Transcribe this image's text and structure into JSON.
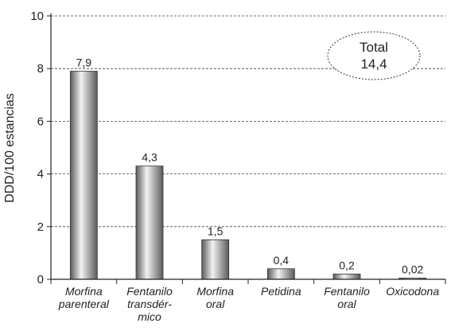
{
  "chart_data": {
    "type": "bar",
    "categories": [
      [
        "Morfina",
        "parenteral"
      ],
      [
        "Fentanilo",
        "transdér-",
        "mico"
      ],
      [
        "Morfina",
        "oral"
      ],
      [
        "Petidina"
      ],
      [
        "Fentanilo",
        "oral"
      ],
      [
        "Oxicodona"
      ]
    ],
    "values": [
      7.9,
      4.3,
      1.5,
      0.4,
      0.2,
      0.02
    ],
    "value_labels": [
      "7,9",
      "4,3",
      "1,5",
      "0,4",
      "0,2",
      "0,02"
    ],
    "ylabel": "DDD/100 estancias",
    "xlabel": "",
    "ylim": [
      0,
      10
    ],
    "yticks": [
      0,
      2,
      4,
      6,
      8,
      10
    ],
    "ytick_labels": [
      "0",
      "2",
      "4",
      "6",
      "8",
      "10"
    ],
    "grid": "horizontal dashed",
    "annotation": {
      "line1": "Total",
      "line2": "14,4",
      "position": "top-right"
    },
    "colors": {
      "bar_dark": "#5a5a5a",
      "bar_light": "#f2f2f2",
      "axis": "#222222",
      "grid": "#444444"
    }
  }
}
